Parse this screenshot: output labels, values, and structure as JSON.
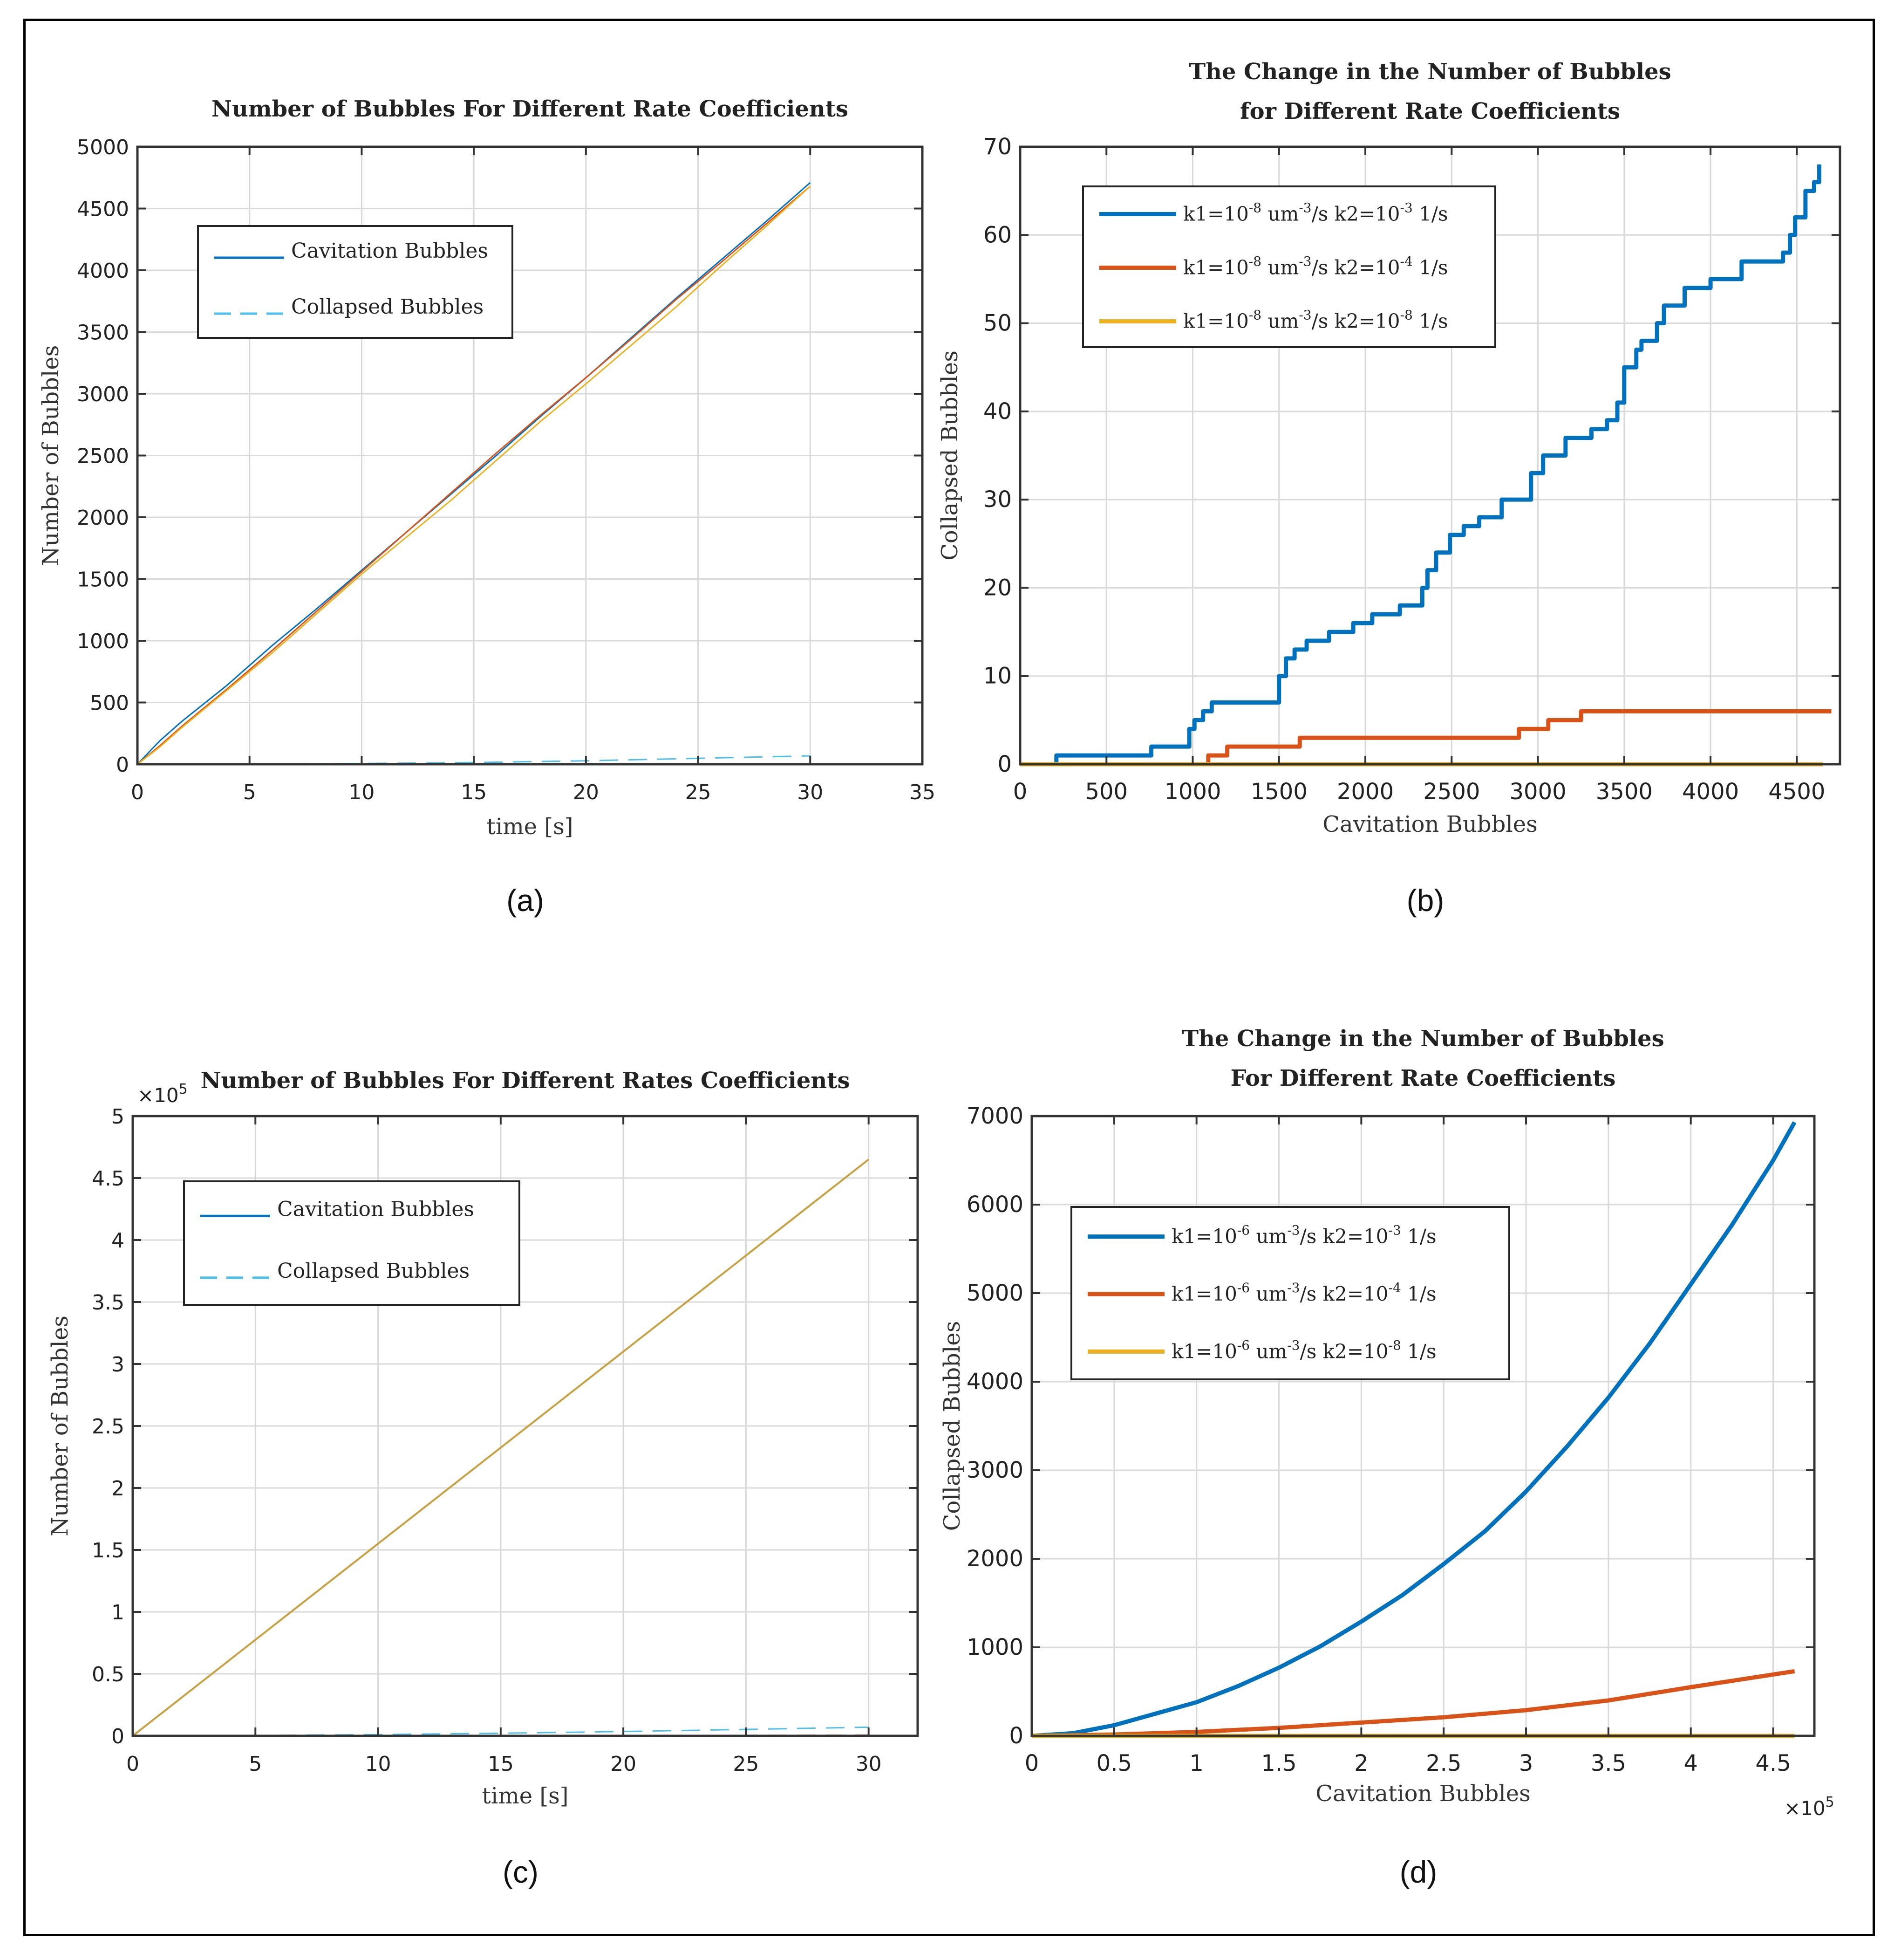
{
  "colors": {
    "blue": "#0072BD",
    "orange": "#D95319",
    "yellow": "#EDB120",
    "lightblue": "#4DBEEE"
  },
  "chart_data": [
    {
      "id": "a",
      "type": "line",
      "title": "Number of Bubbles For Different Rate Coefficients",
      "xlabel": "time [s]",
      "ylabel": "Number of Bubbles",
      "caption": "(a)",
      "xlim": [
        0,
        35
      ],
      "ylim": [
        0,
        5000
      ],
      "xticks": [
        0,
        5,
        10,
        15,
        20,
        25,
        30,
        35
      ],
      "xticklabels": [
        "0",
        "5",
        "10",
        "15",
        "20",
        "25",
        "30",
        "35"
      ],
      "yticks": [
        0,
        500,
        1000,
        1500,
        2000,
        2500,
        3000,
        3500,
        4000,
        4500,
        5000
      ],
      "yticklabels": [
        "0",
        "500",
        "1000",
        "1500",
        "2000",
        "2500",
        "3000",
        "3500",
        "4000",
        "4500",
        "5000"
      ],
      "legend": [
        "Cavitation Bubbles",
        "Collapsed Bubbles"
      ],
      "series": [
        {
          "name": "Cavitation Bubbles (k2=10^-3)",
          "color": "#0072BD",
          "dash": false,
          "width": 3,
          "x": [
            0,
            1,
            2,
            4,
            6,
            8,
            10,
            12,
            14,
            16,
            18,
            20,
            22,
            24,
            26,
            28,
            30
          ],
          "y": [
            0,
            190,
            350,
            640,
            960,
            1260,
            1570,
            1880,
            2190,
            2500,
            2820,
            3130,
            3450,
            3770,
            4080,
            4390,
            4710
          ]
        },
        {
          "name": "Cavitation Bubbles (k2=10^-4)",
          "color": "#D95319",
          "dash": false,
          "width": 3,
          "x": [
            0,
            1,
            2,
            4,
            6,
            8,
            10,
            12,
            14,
            16,
            18,
            20,
            22,
            24,
            26,
            28,
            30
          ],
          "y": [
            0,
            150,
            310,
            610,
            920,
            1240,
            1560,
            1880,
            2200,
            2520,
            2830,
            3130,
            3440,
            3760,
            4060,
            4370,
            4680
          ]
        },
        {
          "name": "Cavitation Bubbles (k2=10^-8)",
          "color": "#EDB120",
          "dash": false,
          "width": 3,
          "x": [
            0,
            1,
            2,
            4,
            6,
            8,
            10,
            12,
            14,
            16,
            18,
            20,
            22,
            24,
            26,
            28,
            30
          ],
          "y": [
            0,
            140,
            300,
            600,
            900,
            1220,
            1540,
            1840,
            2140,
            2460,
            2780,
            3080,
            3390,
            3700,
            4030,
            4350,
            4680
          ]
        },
        {
          "name": "Collapsed Bubbles (k2=10^-3)",
          "color": "#4DBEEE",
          "dash": true,
          "width": 3,
          "x": [
            0,
            5,
            10,
            15,
            20,
            25,
            28,
            30
          ],
          "y": [
            0,
            2,
            6,
            14,
            28,
            48,
            60,
            68
          ]
        },
        {
          "name": "Collapsed Bubbles (k2=10^-4)",
          "color": "#D95319",
          "dash": true,
          "width": 2,
          "x": [
            0,
            10,
            20,
            30
          ],
          "y": [
            0,
            1,
            3,
            6
          ]
        },
        {
          "name": "Collapsed Bubbles (k2=10^-8)",
          "color": "#EDB120",
          "dash": true,
          "width": 2,
          "x": [
            0,
            30
          ],
          "y": [
            0,
            0
          ]
        }
      ]
    },
    {
      "id": "b",
      "type": "line",
      "title": [
        "The Change in the Number of Bubbles",
        "for Different Rate Coefficients"
      ],
      "xlabel": "Cavitation Bubbles",
      "ylabel": "Collapsed Bubbles",
      "caption": "(b)",
      "xlim": [
        0,
        4750
      ],
      "ylim": [
        0,
        70
      ],
      "xticks": [
        0,
        500,
        1000,
        1500,
        2000,
        2500,
        3000,
        3500,
        4000,
        4500
      ],
      "xticklabels": [
        "0",
        "500",
        "1000",
        "1500",
        "2000",
        "2500",
        "3000",
        "3500",
        "4000",
        "4500"
      ],
      "yticks": [
        0,
        10,
        20,
        30,
        40,
        50,
        60,
        70
      ],
      "yticklabels": [
        "0",
        "10",
        "20",
        "30",
        "40",
        "50",
        "60",
        "70"
      ],
      "legend": [
        {
          "k1": "k1=10",
          "k1exp": "-8",
          "unit": " um",
          "unitexp": "-3",
          "k2": "/s k2=10",
          "k2exp": "-3",
          "tail": " 1/s"
        },
        {
          "k1": "k1=10",
          "k1exp": "-8",
          "unit": " um",
          "unitexp": "-3",
          "k2": "/s k2=10",
          "k2exp": "-4",
          "tail": " 1/s"
        },
        {
          "k1": "k1=10",
          "k1exp": "-8",
          "unit": " um",
          "unitexp": "-3",
          "k2": "/s k2=10",
          "k2exp": "-8",
          "tail": " 1/s"
        }
      ],
      "series": [
        {
          "name": "k2=10^-3",
          "color": "#0072BD",
          "step": true,
          "width": 9,
          "x": [
            0,
            210,
            760,
            980,
            1010,
            1060,
            1110,
            1500,
            1540,
            1590,
            1660,
            1790,
            1930,
            2040,
            2200,
            2330,
            2360,
            2410,
            2490,
            2570,
            2660,
            2790,
            2960,
            3030,
            3160,
            3310,
            3400,
            3460,
            3500,
            3570,
            3600,
            3690,
            3730,
            3850,
            4000,
            4180,
            4420,
            4460,
            4490,
            4550,
            4600,
            4630
          ],
          "y": [
            0,
            1,
            2,
            4,
            5,
            6,
            7,
            10,
            12,
            13,
            14,
            15,
            16,
            17,
            18,
            20,
            22,
            24,
            26,
            27,
            28,
            30,
            33,
            35,
            37,
            38,
            39,
            41,
            45,
            47,
            48,
            50,
            52,
            54,
            55,
            57,
            58,
            60,
            62,
            65,
            66,
            68
          ]
        },
        {
          "name": "k2=10^-4",
          "color": "#D95319",
          "step": true,
          "width": 9,
          "x": [
            0,
            1090,
            1200,
            1620,
            2890,
            3060,
            3250,
            4700
          ],
          "y": [
            0,
            1,
            2,
            3,
            4,
            5,
            6,
            6
          ]
        },
        {
          "name": "k2=10^-8",
          "color": "#EDB120",
          "step": false,
          "width": 9,
          "x": [
            0,
            4650
          ],
          "y": [
            0,
            0
          ]
        }
      ]
    },
    {
      "id": "c",
      "type": "line",
      "title": "Number of Bubbles For Different Rates Coefficients",
      "xlabel": "time [s]",
      "ylabel": "Number of Bubbles",
      "caption": "(c)",
      "exponent": "×10",
      "exponent_power": "5",
      "xlim": [
        0,
        32
      ],
      "ylim": [
        0,
        5
      ],
      "xticks": [
        0,
        5,
        10,
        15,
        20,
        25,
        30
      ],
      "xticklabels": [
        "0",
        "5",
        "10",
        "15",
        "20",
        "25",
        "30"
      ],
      "yticks": [
        0,
        0.5,
        1,
        1.5,
        2,
        2.5,
        3,
        3.5,
        4,
        4.5,
        5
      ],
      "yticklabels": [
        "0",
        "0.5",
        "1",
        "1.5",
        "2",
        "2.5",
        "3",
        "3.5",
        "4",
        "4.5",
        "5"
      ],
      "legend": [
        "Cavitation Bubbles",
        "Collapsed Bubbles"
      ],
      "series": [
        {
          "name": "Cavitation Bubbles (k2=10^-3)",
          "color": "#0072BD",
          "dash": false,
          "width": 3,
          "x": [
            0,
            30
          ],
          "y": [
            0,
            4.65
          ]
        },
        {
          "name": "Cavitation Bubbles (k2=10^-4)",
          "color": "#D95319",
          "dash": false,
          "width": 3,
          "x": [
            0,
            30
          ],
          "y": [
            0,
            4.65
          ]
        },
        {
          "name": "Cavitation Bubbles (k2=10^-8)",
          "color": "#C8A040",
          "dash": false,
          "width": 4,
          "x": [
            0,
            30
          ],
          "y": [
            0,
            4.65
          ]
        },
        {
          "name": "Collapsed Bubbles (k2=10^-3)",
          "color": "#4DBEEE",
          "dash": true,
          "width": 3,
          "x": [
            0,
            5,
            10,
            15,
            20,
            25,
            30
          ],
          "y": [
            0,
            0.003,
            0.01,
            0.021,
            0.035,
            0.052,
            0.07
          ]
        },
        {
          "name": "Collapsed Bubbles (k2=10^-4)",
          "color": "#D95319",
          "dash": true,
          "width": 2,
          "x": [
            0,
            30
          ],
          "y": [
            0,
            0.007
          ]
        },
        {
          "name": "Collapsed Bubbles (k2=10^-8)",
          "color": "#EDB120",
          "dash": true,
          "width": 2,
          "x": [
            0,
            30
          ],
          "y": [
            0,
            0
          ]
        }
      ]
    },
    {
      "id": "d",
      "type": "line",
      "title": [
        "The Change in the Number of Bubbles",
        "For Different Rate Coefficients"
      ],
      "xlabel": "Cavitation Bubbles",
      "ylabel": "Collapsed Bubbles",
      "caption": "(d)",
      "exponent": "×10",
      "exponent_power": "5",
      "xlim": [
        0,
        4.75
      ],
      "ylim": [
        0,
        7000
      ],
      "xticks": [
        0,
        0.5,
        1,
        1.5,
        2,
        2.5,
        3,
        3.5,
        4,
        4.5
      ],
      "xticklabels": [
        "0",
        "0.5",
        "1",
        "1.5",
        "2",
        "2.5",
        "3",
        "3.5",
        "4",
        "4.5"
      ],
      "yticks": [
        0,
        1000,
        2000,
        3000,
        4000,
        5000,
        6000,
        7000
      ],
      "yticklabels": [
        "0",
        "1000",
        "2000",
        "3000",
        "4000",
        "5000",
        "6000",
        "7000"
      ],
      "legend": [
        {
          "k1": "k1=10",
          "k1exp": "-6",
          "unit": " um",
          "unitexp": "-3",
          "k2": "/s  k2=10",
          "k2exp": "-3",
          "tail": " 1/s"
        },
        {
          "k1": "k1=10",
          "k1exp": "-6",
          "unit": " um",
          "unitexp": "-3",
          "k2": "/s  k2=10",
          "k2exp": "-4",
          "tail": " 1/s"
        },
        {
          "k1": "k1=10",
          "k1exp": "-6",
          "unit": " um",
          "unitexp": "-3",
          "k2": "/s  k2=10",
          "k2exp": "-8",
          "tail": " 1/s"
        }
      ],
      "series": [
        {
          "name": "k2=10^-3",
          "color": "#0072BD",
          "step": false,
          "width": 9,
          "x": [
            0,
            0.25,
            0.5,
            0.75,
            1,
            1.25,
            1.5,
            1.75,
            2,
            2.25,
            2.5,
            2.75,
            3,
            3.25,
            3.5,
            3.75,
            4,
            4.25,
            4.5,
            4.63
          ],
          "y": [
            0,
            30,
            120,
            250,
            380,
            560,
            770,
            1010,
            1290,
            1590,
            1940,
            2310,
            2760,
            3270,
            3820,
            4430,
            5100,
            5770,
            6500,
            6930
          ]
        },
        {
          "name": "k2=10^-4",
          "color": "#D95319",
          "step": false,
          "width": 9,
          "x": [
            0,
            0.5,
            1,
            1.5,
            2,
            2.5,
            3,
            3.5,
            4,
            4.63
          ],
          "y": [
            0,
            15,
            45,
            90,
            150,
            210,
            290,
            400,
            550,
            730
          ]
        },
        {
          "name": "k2=10^-8",
          "color": "#EDB120",
          "step": false,
          "width": 9,
          "x": [
            0,
            4.63
          ],
          "y": [
            0,
            0
          ]
        }
      ]
    }
  ]
}
